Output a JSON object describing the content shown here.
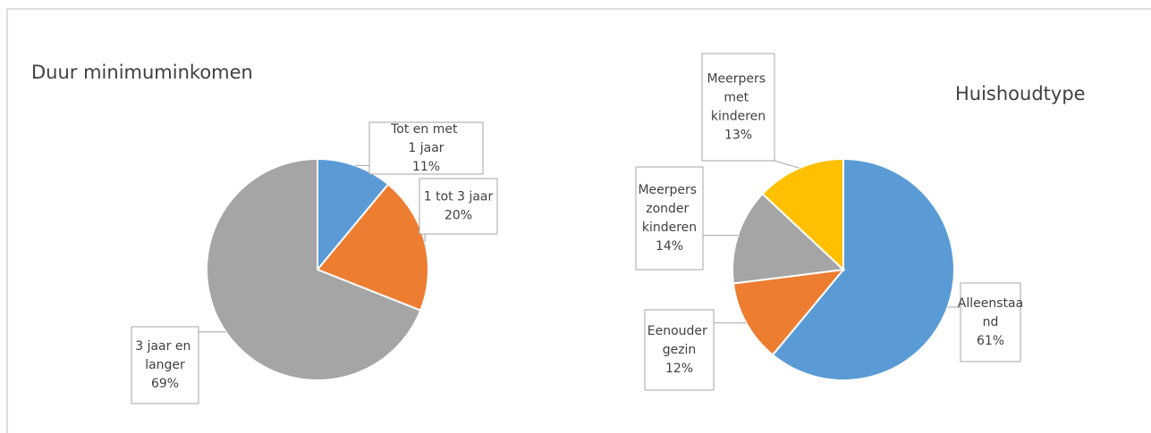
{
  "chart_data": [
    {
      "type": "pie",
      "title": "Duur minimuminkomen",
      "categories": [
        "Tot en met 1 jaar",
        "1 tot 3 jaar",
        "3 jaar en langer"
      ],
      "values": [
        11,
        20,
        69
      ],
      "value_labels": [
        "11%",
        "20%",
        "69%"
      ],
      "colors": [
        "#5b9bd5",
        "#ed7d31",
        "#a5a5a5"
      ]
    },
    {
      "type": "pie",
      "title": "Huishoudtype",
      "categories": [
        "Alleenstaand",
        "Eenouder gezin",
        "Meerpers zonder kinderen",
        "Meerpers met kinderen"
      ],
      "values": [
        61,
        12,
        14,
        13
      ],
      "value_labels": [
        "61%",
        "12%",
        "14%",
        "13%"
      ],
      "colors": [
        "#5b9bd5",
        "#ed7d31",
        "#a5a5a5",
        "#ffc000"
      ]
    }
  ]
}
